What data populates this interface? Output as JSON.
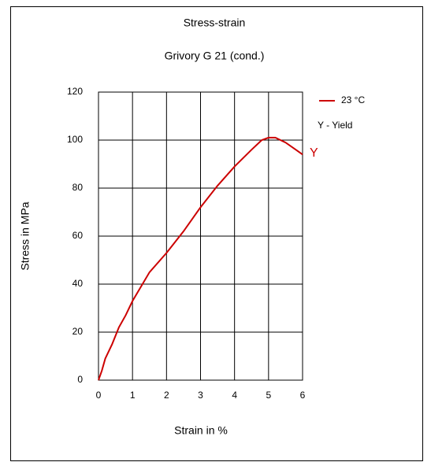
{
  "chart_data": {
    "type": "line",
    "title": "Stress-strain",
    "subtitle": "Grivory G 21 (cond.)",
    "x_label": "Strain in %",
    "y_label": "Stress in MPa",
    "x": [
      0,
      0.1,
      0.2,
      0.4,
      0.6,
      0.8,
      1,
      1.5,
      2,
      2.5,
      3,
      3.5,
      4,
      4.5,
      4.8,
      5,
      5.2,
      5.5,
      5.8,
      6
    ],
    "series": [
      {
        "name": "23 °C",
        "color": "#cc0000",
        "values": [
          0,
          4,
          9,
          15,
          22,
          27,
          33,
          45,
          53,
          62,
          72,
          81,
          89,
          96,
          100,
          101,
          101,
          99,
          96,
          94
        ]
      }
    ],
    "xlim": [
      0,
      6
    ],
    "xticks": [
      0,
      1,
      2,
      3,
      4,
      5,
      6
    ],
    "ylim": [
      0,
      120
    ],
    "yticks": [
      0,
      20,
      40,
      60,
      80,
      100,
      120
    ],
    "grid": true,
    "legend": "right",
    "annotations": [
      "Y - Yield",
      "Y"
    ]
  }
}
